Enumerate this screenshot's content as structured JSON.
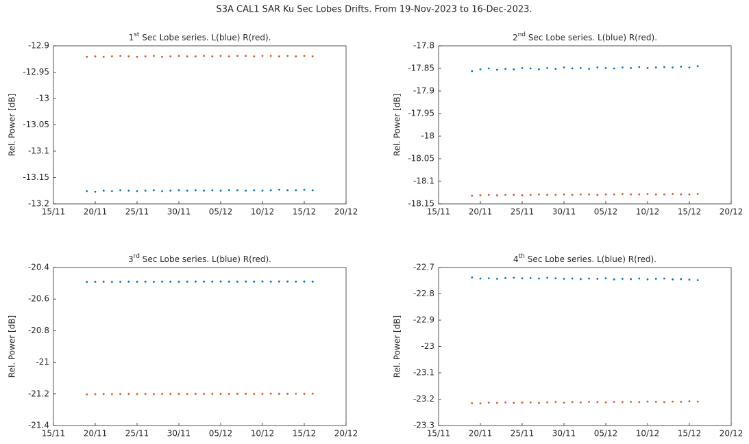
{
  "title": "S3A CAL1 SAR Ku Sec Lobes Drifts. From 19-Nov-2023 to 16-Dec-2023.",
  "chart_data": [
    {
      "type": "scatter",
      "title_number": "1",
      "title_suffix": "st",
      "title_rest": " Sec Lobe series. L(blue) R(red).",
      "y_label": "Rel. Power [dB]",
      "x": [
        "19/11",
        "20/11",
        "21/11",
        "22/11",
        "23/11",
        "24/11",
        "25/11",
        "26/11",
        "27/11",
        "28/11",
        "29/11",
        "30/11",
        "01/12",
        "02/12",
        "03/12",
        "04/12",
        "05/12",
        "06/12",
        "07/12",
        "08/12",
        "09/12",
        "10/12",
        "11/12",
        "12/12",
        "13/12",
        "14/12",
        "15/12",
        "16/12"
      ],
      "xlim": [
        "15/11",
        "20/12"
      ],
      "xticks": [
        "15/11",
        "20/11",
        "25/11",
        "30/11",
        "05/12",
        "10/12",
        "15/12",
        "20/12"
      ],
      "ylim": [
        -13.2,
        -12.9
      ],
      "yticks": [
        -12.9,
        -12.95,
        -13,
        -13.05,
        -13.1,
        -13.15,
        -13.2
      ],
      "series": [
        {
          "color": "#0072bd",
          "values": [
            -13.176,
            -13.177,
            -13.175,
            -13.176,
            -13.174,
            -13.175,
            -13.176,
            -13.175,
            -13.174,
            -13.176,
            -13.175,
            -13.174,
            -13.175,
            -13.174,
            -13.175,
            -13.174,
            -13.175,
            -13.174,
            -13.174,
            -13.175,
            -13.174,
            -13.175,
            -13.174,
            -13.173,
            -13.174,
            -13.174,
            -13.173,
            -13.174
          ]
        },
        {
          "color": "#d95319",
          "values": [
            -12.921,
            -12.92,
            -12.921,
            -12.92,
            -12.919,
            -12.92,
            -12.921,
            -12.92,
            -12.919,
            -12.921,
            -12.92,
            -12.919,
            -12.92,
            -12.92,
            -12.919,
            -12.92,
            -12.919,
            -12.92,
            -12.919,
            -12.919,
            -12.92,
            -12.919,
            -12.919,
            -12.92,
            -12.919,
            -12.92,
            -12.919,
            -12.92
          ]
        }
      ]
    },
    {
      "type": "scatter",
      "title_number": "2",
      "title_suffix": "nd",
      "title_rest": " Sec Lobe series. L(blue) R(red).",
      "y_label": "Rel. Power [dB]",
      "x": [
        "19/11",
        "20/11",
        "21/11",
        "22/11",
        "23/11",
        "24/11",
        "25/11",
        "26/11",
        "27/11",
        "28/11",
        "29/11",
        "30/11",
        "01/12",
        "02/12",
        "03/12",
        "04/12",
        "05/12",
        "06/12",
        "07/12",
        "08/12",
        "09/12",
        "10/12",
        "11/12",
        "12/12",
        "13/12",
        "14/12",
        "15/12",
        "16/12"
      ],
      "xlim": [
        "15/11",
        "20/12"
      ],
      "xticks": [
        "15/11",
        "20/11",
        "25/11",
        "30/11",
        "05/12",
        "10/12",
        "15/12",
        "20/12"
      ],
      "ylim": [
        -18.15,
        -17.8
      ],
      "yticks": [
        -17.8,
        -17.85,
        -17.9,
        -17.95,
        -18,
        -18.05,
        -18.1,
        -18.15
      ],
      "series": [
        {
          "color": "#0072bd",
          "values": [
            -17.856,
            -17.852,
            -17.85,
            -17.853,
            -17.851,
            -17.852,
            -17.849,
            -17.85,
            -17.852,
            -17.849,
            -17.851,
            -17.848,
            -17.85,
            -17.849,
            -17.851,
            -17.848,
            -17.849,
            -17.85,
            -17.848,
            -17.849,
            -17.847,
            -17.849,
            -17.848,
            -17.847,
            -17.848,
            -17.846,
            -17.848,
            -17.845
          ]
        },
        {
          "color": "#d95319",
          "values": [
            -18.132,
            -18.131,
            -18.13,
            -18.131,
            -18.13,
            -18.13,
            -18.131,
            -18.13,
            -18.129,
            -18.13,
            -18.13,
            -18.129,
            -18.13,
            -18.129,
            -18.129,
            -18.13,
            -18.129,
            -18.129,
            -18.128,
            -18.129,
            -18.129,
            -18.128,
            -18.129,
            -18.129,
            -18.128,
            -18.129,
            -18.129,
            -18.128
          ]
        }
      ]
    },
    {
      "type": "scatter",
      "title_number": "3",
      "title_suffix": "rd",
      "title_rest": " Sec Lobe series. L(blue) R(red).",
      "y_label": "Rel. Power [dB]",
      "x": [
        "19/11",
        "20/11",
        "21/11",
        "22/11",
        "23/11",
        "24/11",
        "25/11",
        "26/11",
        "27/11",
        "28/11",
        "29/11",
        "30/11",
        "01/12",
        "02/12",
        "03/12",
        "04/12",
        "05/12",
        "06/12",
        "07/12",
        "08/12",
        "09/12",
        "10/12",
        "11/12",
        "12/12",
        "13/12",
        "14/12",
        "15/12",
        "16/12"
      ],
      "xlim": [
        "15/11",
        "20/12"
      ],
      "xticks": [
        "15/11",
        "20/11",
        "25/11",
        "30/11",
        "05/12",
        "10/12",
        "15/12",
        "20/12"
      ],
      "ylim": [
        -21.4,
        -20.4
      ],
      "yticks": [
        -20.4,
        -20.6,
        -20.8,
        -21,
        -21.2,
        -21.4
      ],
      "series": [
        {
          "color": "#0072bd",
          "values": [
            -20.492,
            -20.491,
            -20.49,
            -20.492,
            -20.491,
            -20.49,
            -20.491,
            -20.49,
            -20.491,
            -20.49,
            -20.49,
            -20.491,
            -20.49,
            -20.489,
            -20.49,
            -20.49,
            -20.489,
            -20.49,
            -20.49,
            -20.489,
            -20.49,
            -20.489,
            -20.49,
            -20.489,
            -20.489,
            -20.49,
            -20.489,
            -20.49
          ]
        },
        {
          "color": "#d95319",
          "values": [
            -21.203,
            -21.202,
            -21.201,
            -21.202,
            -21.201,
            -21.2,
            -21.201,
            -21.2,
            -21.201,
            -21.2,
            -21.2,
            -21.201,
            -21.2,
            -21.199,
            -21.2,
            -21.2,
            -21.199,
            -21.2,
            -21.199,
            -21.199,
            -21.2,
            -21.199,
            -21.198,
            -21.199,
            -21.199,
            -21.198,
            -21.199,
            -21.198
          ]
        }
      ]
    },
    {
      "type": "scatter",
      "title_number": "4",
      "title_suffix": "th",
      "title_rest": " Sec Lobe series. L(blue) R(red).",
      "y_label": "Rel. Power [dB]",
      "x": [
        "19/11",
        "20/11",
        "21/11",
        "22/11",
        "23/11",
        "24/11",
        "25/11",
        "26/11",
        "27/11",
        "28/11",
        "29/11",
        "30/11",
        "01/12",
        "02/12",
        "03/12",
        "04/12",
        "05/12",
        "06/12",
        "07/12",
        "08/12",
        "09/12",
        "10/12",
        "11/12",
        "12/12",
        "13/12",
        "14/12",
        "15/12",
        "16/12"
      ],
      "xlim": [
        "15/11",
        "20/12"
      ],
      "xticks": [
        "15/11",
        "20/11",
        "25/11",
        "30/11",
        "05/12",
        "10/12",
        "15/12",
        "20/12"
      ],
      "ylim": [
        -23.3,
        -22.7
      ],
      "yticks": [
        -22.7,
        -22.8,
        -22.9,
        -23,
        -23.1,
        -23.2,
        -23.3
      ],
      "series": [
        {
          "color": "#0072bd",
          "values": [
            -22.738,
            -22.742,
            -22.741,
            -22.743,
            -22.74,
            -22.739,
            -22.741,
            -22.74,
            -22.742,
            -22.739,
            -22.741,
            -22.743,
            -22.742,
            -22.744,
            -22.742,
            -22.743,
            -22.741,
            -22.745,
            -22.743,
            -22.744,
            -22.742,
            -22.745,
            -22.743,
            -22.742,
            -22.745,
            -22.744,
            -22.746,
            -22.748
          ]
        },
        {
          "color": "#d95319",
          "values": [
            -23.215,
            -23.216,
            -23.213,
            -23.214,
            -23.212,
            -23.214,
            -23.213,
            -23.212,
            -23.214,
            -23.212,
            -23.211,
            -23.213,
            -23.211,
            -23.212,
            -23.21,
            -23.211,
            -23.212,
            -23.21,
            -23.211,
            -23.21,
            -23.211,
            -23.209,
            -23.21,
            -23.211,
            -23.209,
            -23.21,
            -23.208,
            -23.209
          ]
        }
      ]
    }
  ]
}
